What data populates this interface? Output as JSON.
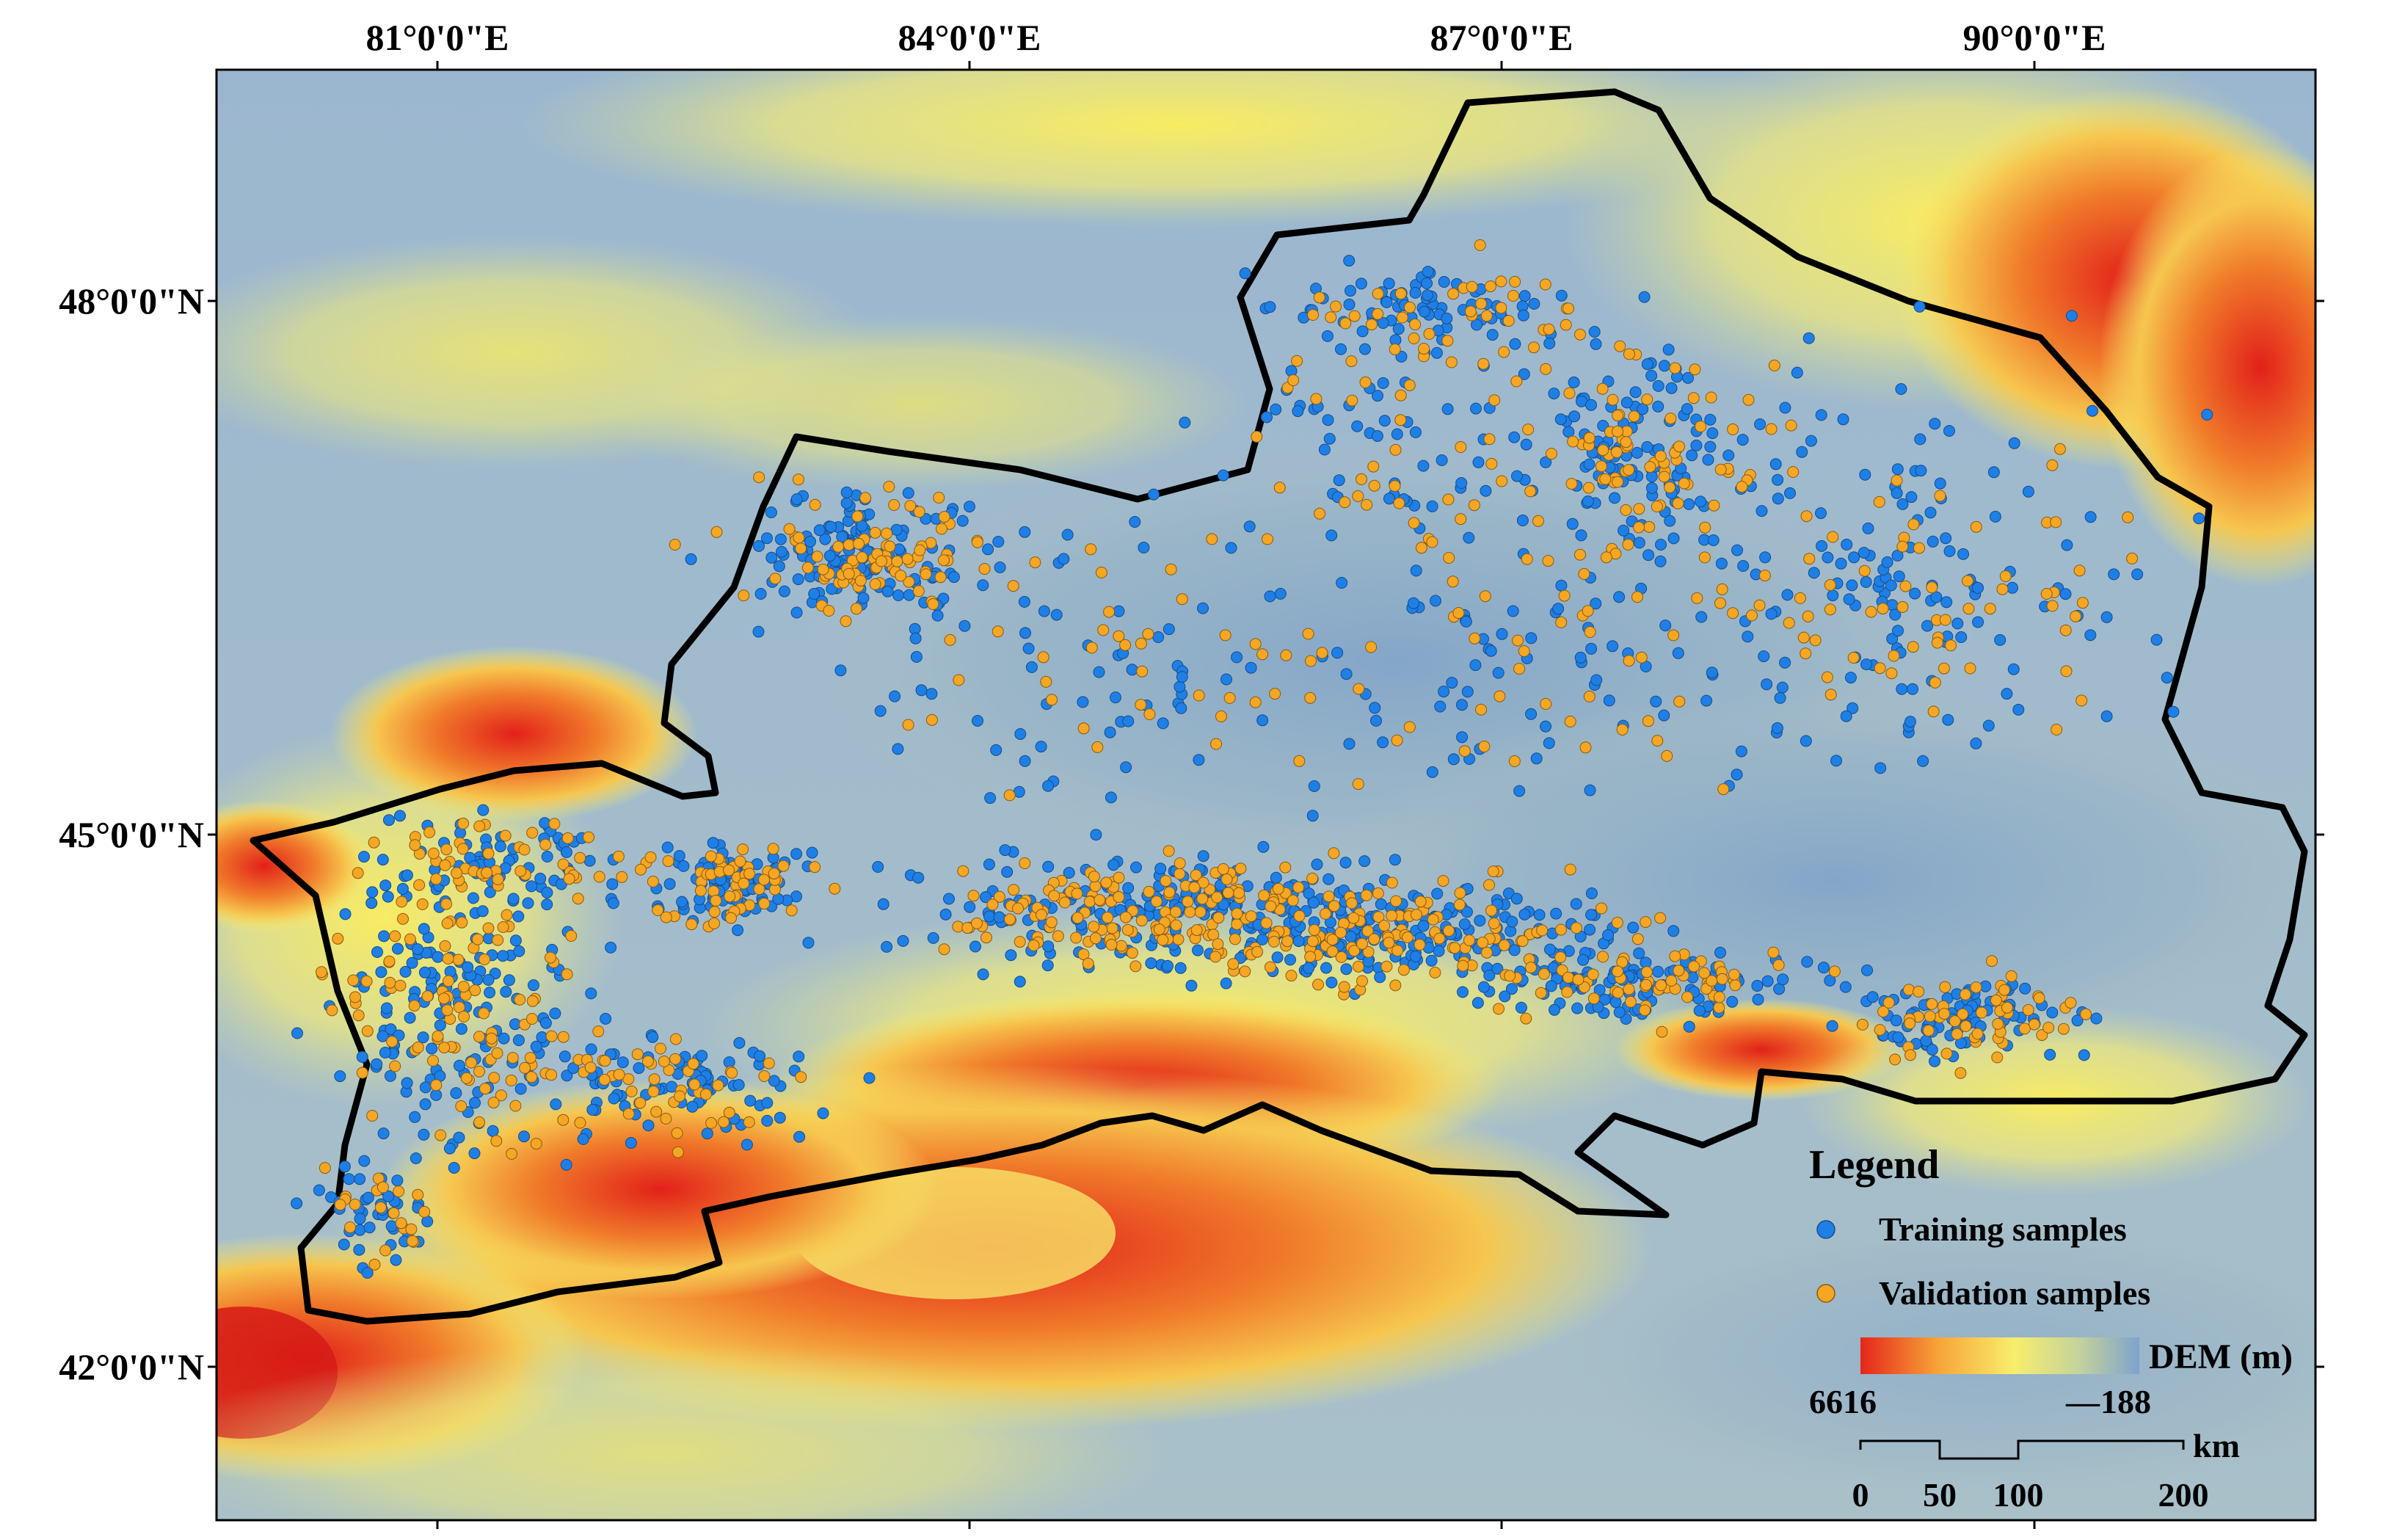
{
  "map": {
    "graticule": {
      "longitude_labels": [
        "81°0'0\"E",
        "84°0'0\"E",
        "87°0'0\"E",
        "90°0'0\"E"
      ],
      "latitude_labels": [
        "48°0'0\"N",
        "45°0'0\"N",
        "42°0'0\"N"
      ]
    },
    "colors": {
      "boundary": "#000000",
      "training_point": "#1e7fe6",
      "validation_point": "#f5a623",
      "dem_high": "#e8321c",
      "dem_mid": "#f7ec6a",
      "dem_low": "#7ea3c6",
      "background_lowland": "#8fa9c7"
    }
  },
  "legend": {
    "title": "Legend",
    "items": [
      {
        "label": "Training samples",
        "icon": "blue-circle-marker"
      },
      {
        "label": "Validation samples",
        "icon": "orange-circle-marker"
      }
    ],
    "dem": {
      "title": "DEM (m)",
      "max_label": "6616",
      "min_label": "188",
      "min_prefix": "—"
    }
  },
  "scale_bar": {
    "unit": "km",
    "ticks": [
      "0",
      "50",
      "100",
      "200"
    ]
  }
}
